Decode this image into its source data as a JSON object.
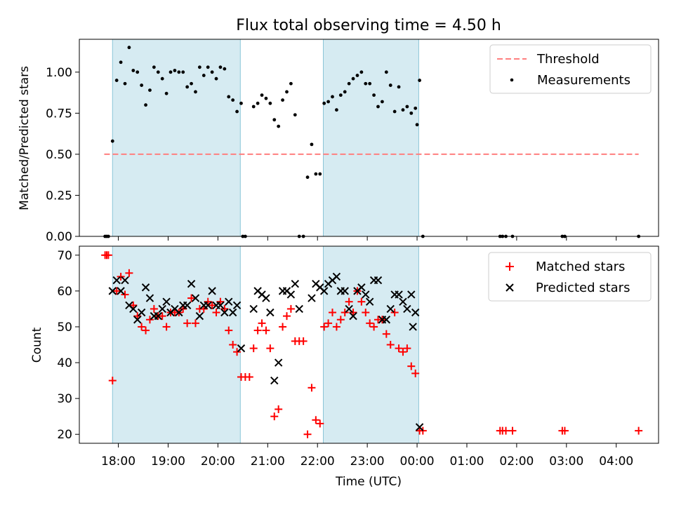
{
  "chart_data": [
    {
      "type": "scatter",
      "title": "Flux total observing time = 4.50 h",
      "xlabel": "",
      "ylabel": "Matched/Predicted stars",
      "ylim": [
        0,
        1.2
      ],
      "yticks": [
        0,
        0.25,
        0.5,
        0.75,
        1.0
      ],
      "ytick_labels": [
        "0.00",
        "0.25",
        "0.50",
        "0.75",
        "1.00"
      ],
      "legend": {
        "placement": "top-right",
        "entries": [
          {
            "label": "Threshold",
            "kind": "dashed-line",
            "color": "#ff7f7f"
          },
          {
            "label": "Measurements",
            "kind": "dot",
            "color": "#000000"
          }
        ]
      },
      "shaded_windows": [
        [
          "17:53",
          "20:27"
        ],
        [
          "22:07",
          "00:02"
        ]
      ],
      "threshold": {
        "value": 0.5,
        "x_start": "17:43",
        "x_end": "04:27"
      },
      "series": [
        {
          "name": "Measurements",
          "color": "#000000",
          "points": [
            [
              "17:44",
              0.0
            ],
            [
              "17:46",
              0.0
            ],
            [
              "17:48",
              0.0
            ],
            [
              "17:53",
              0.58
            ],
            [
              "17:58",
              0.95
            ],
            [
              "18:03",
              1.06
            ],
            [
              "18:08",
              0.93
            ],
            [
              "18:13",
              1.15
            ],
            [
              "18:18",
              1.01
            ],
            [
              "18:23",
              1.0
            ],
            [
              "18:28",
              0.92
            ],
            [
              "18:33",
              0.8
            ],
            [
              "18:38",
              0.89
            ],
            [
              "18:43",
              1.03
            ],
            [
              "18:48",
              1.0
            ],
            [
              "18:53",
              0.96
            ],
            [
              "18:58",
              0.87
            ],
            [
              "19:03",
              1.0
            ],
            [
              "19:08",
              1.01
            ],
            [
              "19:13",
              1.0
            ],
            [
              "19:18",
              1.0
            ],
            [
              "19:23",
              0.91
            ],
            [
              "19:28",
              0.93
            ],
            [
              "19:33",
              0.88
            ],
            [
              "19:38",
              1.03
            ],
            [
              "19:43",
              0.98
            ],
            [
              "19:48",
              1.03
            ],
            [
              "19:53",
              1.0
            ],
            [
              "19:58",
              0.96
            ],
            [
              "20:03",
              1.03
            ],
            [
              "20:08",
              1.02
            ],
            [
              "20:13",
              0.85
            ],
            [
              "20:18",
              0.83
            ],
            [
              "20:23",
              0.76
            ],
            [
              "20:28",
              0.81
            ],
            [
              "20:30",
              0.0
            ],
            [
              "20:33",
              0.0
            ],
            [
              "20:43",
              0.79
            ],
            [
              "20:48",
              0.81
            ],
            [
              "20:53",
              0.86
            ],
            [
              "20:58",
              0.84
            ],
            [
              "21:03",
              0.81
            ],
            [
              "21:08",
              0.71
            ],
            [
              "21:13",
              0.67
            ],
            [
              "21:18",
              0.83
            ],
            [
              "21:23",
              0.88
            ],
            [
              "21:28",
              0.93
            ],
            [
              "21:33",
              0.74
            ],
            [
              "21:38",
              0.0
            ],
            [
              "21:43",
              0.0
            ],
            [
              "21:48",
              0.36
            ],
            [
              "21:53",
              0.56
            ],
            [
              "21:58",
              0.38
            ],
            [
              "22:03",
              0.38
            ],
            [
              "22:08",
              0.81
            ],
            [
              "22:13",
              0.82
            ],
            [
              "22:18",
              0.85
            ],
            [
              "22:23",
              0.77
            ],
            [
              "22:28",
              0.86
            ],
            [
              "22:33",
              0.88
            ],
            [
              "22:38",
              0.93
            ],
            [
              "22:43",
              0.96
            ],
            [
              "22:48",
              0.98
            ],
            [
              "22:53",
              1.0
            ],
            [
              "22:58",
              0.93
            ],
            [
              "23:03",
              0.93
            ],
            [
              "23:08",
              0.86
            ],
            [
              "23:13",
              0.79
            ],
            [
              "23:18",
              0.82
            ],
            [
              "23:23",
              1.0
            ],
            [
              "23:28",
              0.92
            ],
            [
              "23:33",
              0.76
            ],
            [
              "23:38",
              0.91
            ],
            [
              "23:43",
              0.77
            ],
            [
              "23:48",
              0.79
            ],
            [
              "23:53",
              0.75
            ],
            [
              "23:58",
              0.78
            ],
            [
              "00:00",
              0.68
            ],
            [
              "00:03",
              0.95
            ],
            [
              "00:07",
              0.0
            ],
            [
              "01:40",
              0.0
            ],
            [
              "01:43",
              0.0
            ],
            [
              "01:47",
              0.0
            ],
            [
              "01:55",
              0.0
            ],
            [
              "02:55",
              0.0
            ],
            [
              "02:58",
              0.0
            ],
            [
              "04:27",
              0.0
            ]
          ]
        }
      ]
    },
    {
      "type": "scatter",
      "title": "",
      "xlabel": "Time (UTC)",
      "ylabel": "Count",
      "ylim": [
        17.5,
        72.5
      ],
      "yticks": [
        20,
        30,
        40,
        50,
        60,
        70
      ],
      "ytick_labels": [
        "20",
        "30",
        "40",
        "50",
        "60",
        "70"
      ],
      "x_tick_labels": [
        "18:00",
        "19:00",
        "20:00",
        "21:00",
        "22:00",
        "23:00",
        "00:00",
        "01:00",
        "02:00",
        "03:00",
        "04:00"
      ],
      "legend": {
        "placement": "top-right",
        "entries": [
          {
            "label": "Matched stars",
            "kind": "plus",
            "color": "#ff0000"
          },
          {
            "label": "Predicted stars",
            "kind": "x",
            "color": "#000000"
          }
        ]
      },
      "shaded_windows": [
        [
          "17:53",
          "20:27"
        ],
        [
          "22:07",
          "00:02"
        ]
      ],
      "series": [
        {
          "name": "Matched stars",
          "marker": "plus",
          "color": "#ff0000",
          "points": [
            [
              "17:44",
              70
            ],
            [
              "17:46",
              70
            ],
            [
              "17:48",
              70
            ],
            [
              "17:53",
              35
            ],
            [
              "17:58",
              60
            ],
            [
              "18:03",
              64
            ],
            [
              "18:08",
              59
            ],
            [
              "18:13",
              65
            ],
            [
              "18:18",
              56
            ],
            [
              "18:23",
              53
            ],
            [
              "18:28",
              50
            ],
            [
              "18:33",
              49
            ],
            [
              "18:38",
              52
            ],
            [
              "18:43",
              55
            ],
            [
              "18:48",
              53
            ],
            [
              "18:53",
              53
            ],
            [
              "18:58",
              50
            ],
            [
              "19:03",
              54
            ],
            [
              "19:08",
              54
            ],
            [
              "19:13",
              54
            ],
            [
              "19:18",
              55
            ],
            [
              "19:23",
              51
            ],
            [
              "19:28",
              58
            ],
            [
              "19:33",
              51
            ],
            [
              "19:38",
              55
            ],
            [
              "19:43",
              55
            ],
            [
              "19:48",
              57
            ],
            [
              "19:53",
              56
            ],
            [
              "19:58",
              54
            ],
            [
              "20:03",
              57
            ],
            [
              "20:08",
              55
            ],
            [
              "20:13",
              49
            ],
            [
              "20:18",
              45
            ],
            [
              "20:23",
              43
            ],
            [
              "20:28",
              36
            ],
            [
              "20:33",
              36
            ],
            [
              "20:38",
              36
            ],
            [
              "20:43",
              44
            ],
            [
              "20:48",
              49
            ],
            [
              "20:53",
              51
            ],
            [
              "20:58",
              49
            ],
            [
              "21:03",
              44
            ],
            [
              "21:08",
              25
            ],
            [
              "21:13",
              27
            ],
            [
              "21:18",
              50
            ],
            [
              "21:23",
              53
            ],
            [
              "21:28",
              55
            ],
            [
              "21:33",
              46
            ],
            [
              "21:38",
              46
            ],
            [
              "21:43",
              46
            ],
            [
              "21:48",
              20
            ],
            [
              "21:53",
              33
            ],
            [
              "21:58",
              24
            ],
            [
              "22:03",
              23
            ],
            [
              "22:08",
              50
            ],
            [
              "22:13",
              51
            ],
            [
              "22:18",
              54
            ],
            [
              "22:23",
              50
            ],
            [
              "22:28",
              52
            ],
            [
              "22:33",
              54
            ],
            [
              "22:38",
              57
            ],
            [
              "22:43",
              54
            ],
            [
              "22:48",
              60
            ],
            [
              "22:53",
              57
            ],
            [
              "22:58",
              54
            ],
            [
              "23:03",
              51
            ],
            [
              "23:08",
              50
            ],
            [
              "23:13",
              52
            ],
            [
              "23:18",
              52
            ],
            [
              "23:23",
              48
            ],
            [
              "23:28",
              45
            ],
            [
              "23:33",
              54
            ],
            [
              "23:38",
              44
            ],
            [
              "23:43",
              43
            ],
            [
              "23:48",
              44
            ],
            [
              "23:53",
              39
            ],
            [
              "23:58",
              37
            ],
            [
              "00:03",
              21
            ],
            [
              "00:07",
              21
            ],
            [
              "01:40",
              21
            ],
            [
              "01:43",
              21
            ],
            [
              "01:47",
              21
            ],
            [
              "01:55",
              21
            ],
            [
              "02:55",
              21
            ],
            [
              "02:58",
              21
            ],
            [
              "04:27",
              21
            ]
          ]
        },
        {
          "name": "Predicted stars",
          "marker": "x",
          "color": "#000000",
          "points": [
            [
              "17:53",
              60
            ],
            [
              "17:58",
              63
            ],
            [
              "18:03",
              60
            ],
            [
              "18:08",
              63
            ],
            [
              "18:13",
              56
            ],
            [
              "18:18",
              55
            ],
            [
              "18:23",
              52
            ],
            [
              "18:28",
              54
            ],
            [
              "18:33",
              61
            ],
            [
              "18:38",
              58
            ],
            [
              "18:43",
              53
            ],
            [
              "18:48",
              53
            ],
            [
              "18:53",
              55
            ],
            [
              "18:58",
              57
            ],
            [
              "19:03",
              54
            ],
            [
              "19:08",
              55
            ],
            [
              "19:13",
              54
            ],
            [
              "19:18",
              56
            ],
            [
              "19:23",
              56
            ],
            [
              "19:28",
              62
            ],
            [
              "19:33",
              58
            ],
            [
              "19:38",
              53
            ],
            [
              "19:43",
              56
            ],
            [
              "19:48",
              56
            ],
            [
              "19:53",
              60
            ],
            [
              "19:58",
              56
            ],
            [
              "20:03",
              56
            ],
            [
              "20:08",
              54
            ],
            [
              "20:13",
              57
            ],
            [
              "20:18",
              54
            ],
            [
              "20:23",
              56
            ],
            [
              "20:28",
              44
            ],
            [
              "20:43",
              55
            ],
            [
              "20:48",
              60
            ],
            [
              "20:53",
              59
            ],
            [
              "20:58",
              58
            ],
            [
              "21:03",
              54
            ],
            [
              "21:08",
              35
            ],
            [
              "21:13",
              40
            ],
            [
              "21:18",
              60
            ],
            [
              "21:23",
              60
            ],
            [
              "21:28",
              59
            ],
            [
              "21:33",
              62
            ],
            [
              "21:38",
              55
            ],
            [
              "21:53",
              58
            ],
            [
              "21:58",
              62
            ],
            [
              "22:03",
              61
            ],
            [
              "22:08",
              60
            ],
            [
              "22:13",
              62
            ],
            [
              "22:18",
              63
            ],
            [
              "22:23",
              64
            ],
            [
              "22:28",
              60
            ],
            [
              "22:33",
              60
            ],
            [
              "22:38",
              55
            ],
            [
              "22:43",
              53
            ],
            [
              "22:48",
              60
            ],
            [
              "22:53",
              61
            ],
            [
              "22:58",
              59
            ],
            [
              "23:03",
              57
            ],
            [
              "23:08",
              63
            ],
            [
              "23:13",
              63
            ],
            [
              "23:18",
              52
            ],
            [
              "23:23",
              52
            ],
            [
              "23:28",
              55
            ],
            [
              "23:33",
              59
            ],
            [
              "23:38",
              59
            ],
            [
              "23:43",
              57
            ],
            [
              "23:48",
              55
            ],
            [
              "23:53",
              59
            ],
            [
              "23:55",
              50
            ],
            [
              "23:58",
              54
            ],
            [
              "00:03",
              22
            ]
          ]
        }
      ]
    }
  ]
}
